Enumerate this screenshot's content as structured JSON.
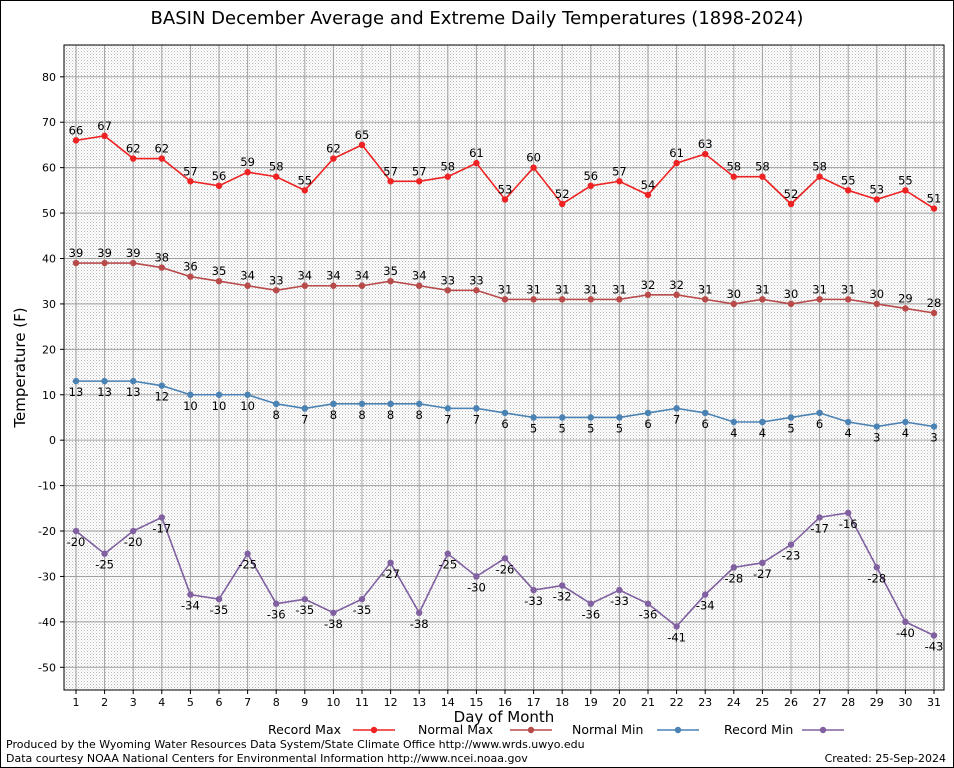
{
  "chart_data": {
    "type": "line",
    "title": "BASIN December Average and Extreme Daily Temperatures (1898-2024)",
    "xlabel": "Day of Month",
    "ylabel": "Temperature (F)",
    "ylim": [
      -55,
      87
    ],
    "yticks": [
      -50,
      -40,
      -30,
      -20,
      -10,
      0,
      10,
      20,
      30,
      40,
      50,
      60,
      70,
      80
    ],
    "x": [
      1,
      2,
      3,
      4,
      5,
      6,
      7,
      8,
      9,
      10,
      11,
      12,
      13,
      14,
      15,
      16,
      17,
      18,
      19,
      20,
      21,
      22,
      23,
      24,
      25,
      26,
      27,
      28,
      29,
      30,
      31
    ],
    "grid": true,
    "legend_position": "bottom",
    "series": [
      {
        "name": "Record Max",
        "color": "#ee2222",
        "values": [
          66,
          67,
          62,
          62,
          57,
          56,
          59,
          58,
          55,
          62,
          65,
          57,
          57,
          58,
          61,
          53,
          60,
          52,
          56,
          57,
          54,
          61,
          63,
          58,
          58,
          52,
          58,
          55,
          53,
          55,
          51
        ]
      },
      {
        "name": "Normal Max",
        "color": "#b84a4a",
        "values": [
          39,
          39,
          39,
          38,
          36,
          35,
          34,
          33,
          34,
          34,
          34,
          35,
          34,
          33,
          33,
          31,
          31,
          31,
          31,
          31,
          32,
          32,
          31,
          30,
          31,
          30,
          31,
          31,
          30,
          29,
          28
        ]
      },
      {
        "name": "Normal Min",
        "color": "#4a82b4",
        "values": [
          13,
          13,
          13,
          12,
          10,
          10,
          10,
          8,
          7,
          8,
          8,
          8,
          8,
          7,
          7,
          6,
          5,
          5,
          5,
          5,
          6,
          7,
          6,
          4,
          4,
          5,
          6,
          4,
          3,
          4,
          3
        ]
      },
      {
        "name": "Record Min",
        "color": "#8060a0",
        "values": [
          -20,
          -25,
          -20,
          -17,
          -34,
          -35,
          -25,
          -36,
          -35,
          -38,
          -35,
          -27,
          -38,
          -25,
          -30,
          -26,
          -33,
          -32,
          -36,
          -33,
          -36,
          -41,
          -34,
          -28,
          -27,
          -23,
          -17,
          -16,
          -28,
          -40,
          -43
        ]
      }
    ]
  },
  "footer": {
    "produced_by": "Produced by the Wyoming Water Resources Data System/State Climate Office http://www.wrds.uwyo.edu",
    "courtesy": "Data courtesy NOAA National Centers for Environmental Information http://www.ncei.noaa.gov",
    "created": "Created:  25-Sep-2024"
  }
}
